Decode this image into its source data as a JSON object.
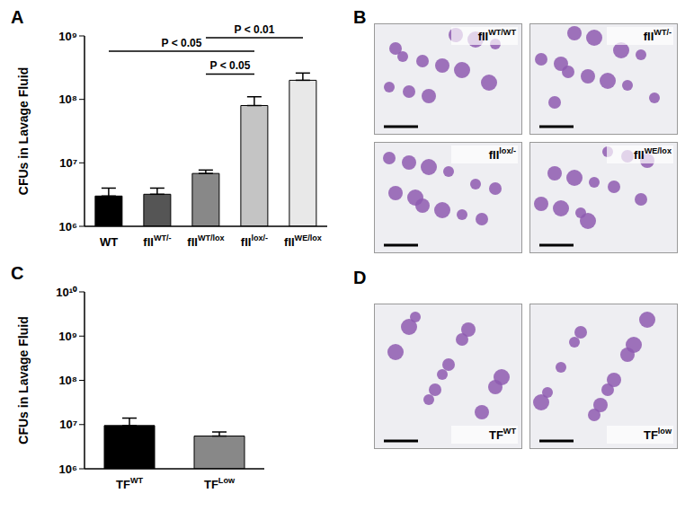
{
  "chart_data": [
    {
      "type": "bar",
      "title": "A",
      "y_label": "CFUs in Lavage Fluid",
      "categories": [
        "WT",
        "fIIWT/-",
        "fIIWT/lox",
        "fIIlox/-",
        "fIIWE/lox"
      ],
      "category_superscripts": [
        "",
        "WT/-",
        "WT/lox",
        "lox/-",
        "WE/lox"
      ],
      "values": [
        3000000,
        3200000,
        6800000,
        80000000,
        200000000
      ],
      "errors": [
        1000000,
        800000,
        900000,
        30000000,
        60000000
      ],
      "colors": [
        "#000000",
        "#555555",
        "#888888",
        "#c4c4c4",
        "#e8e8e8"
      ],
      "log": "y",
      "ylim": [
        1000000,
        1000000000
      ],
      "yticks": [
        {
          "value": 1000000,
          "label": "10⁶"
        },
        {
          "value": 10000000,
          "label": "10⁷"
        },
        {
          "value": 100000000,
          "label": "10⁸"
        },
        {
          "value": 1000000000,
          "label": "10⁹"
        }
      ],
      "annotations": [
        {
          "text": "P < 0.05",
          "from": "WT",
          "to": "fIIlox/-"
        },
        {
          "text": "P < 0.01",
          "from": "fIIWT/lox",
          "to": "fIIWE/lox"
        },
        {
          "text": "P < 0.05",
          "from": "fIIWT/lox",
          "to": "fIIlox/-"
        }
      ]
    },
    {
      "type": "bar",
      "title": "C",
      "y_label": "CFUs in Lavage Fluid",
      "categories": [
        "TFWT",
        "TFLow"
      ],
      "category_superscripts": [
        "WT",
        "Low"
      ],
      "values": [
        9500000,
        5500000
      ],
      "errors": [
        4500000,
        1300000
      ],
      "colors": [
        "#000000",
        "#888888"
      ],
      "log": "y",
      "ylim": [
        1000000,
        10000000000
      ],
      "yticks": [
        {
          "value": 1000000,
          "label": "10⁶"
        },
        {
          "value": 10000000,
          "label": "10⁷"
        },
        {
          "value": 100000000,
          "label": "10⁸"
        },
        {
          "value": 1000000000,
          "label": "10⁹"
        },
        {
          "value": 10000000000,
          "label": "10¹⁰"
        }
      ]
    }
  ],
  "images": [
    {
      "title": "B",
      "labels": [
        "fIIWT/WT",
        "fIIWT/-",
        "fIIlox/-",
        "fIIWE/lox"
      ],
      "label_superscripts": [
        "WT/WT",
        "WT/-",
        "lox/-",
        "WE/lox"
      ]
    },
    {
      "title": "D",
      "labels": [
        "TFWT",
        "TFlow"
      ],
      "label_superscripts": [
        "WT",
        "low"
      ]
    }
  ]
}
